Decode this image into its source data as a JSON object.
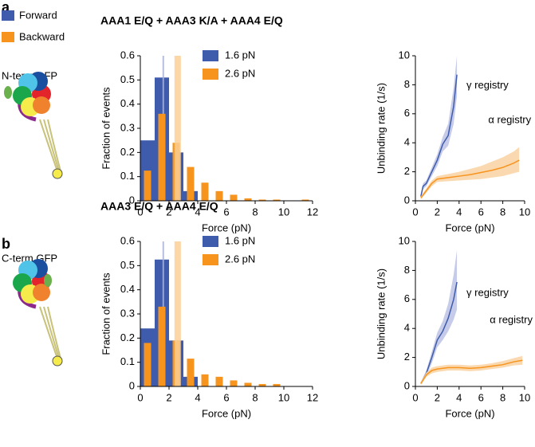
{
  "legend": {
    "forward": {
      "label": "Forward",
      "color": "#3f5bac"
    },
    "backward": {
      "label": "Backward",
      "color": "#f7941d"
    }
  },
  "panels": [
    {
      "label": "a",
      "gfp": "N-term GFP"
    },
    {
      "label": "b",
      "gfp": "C-term GFP"
    }
  ],
  "chart_data": [
    {
      "type": "histogram",
      "title": "AAA1 E/Q + AAA3 K/A + AAA4 E/Q",
      "xlabel": "Force (pN)",
      "ylabel": "Fraction of events",
      "bins": [
        0,
        1,
        2,
        3,
        4,
        5,
        6,
        7,
        8,
        9,
        10,
        11,
        12
      ],
      "series": [
        {
          "name": "1.6 pN",
          "color": "#3f5bac",
          "mean": 1.6,
          "mean_color": "#aab3dd",
          "values": [
            0.25,
            0.51,
            0.2,
            0.04,
            null,
            null,
            null,
            null,
            null,
            null,
            null,
            null
          ]
        },
        {
          "name": "2.6 pN",
          "color": "#f7941d",
          "mean": 2.6,
          "mean_color": "#fbcf94",
          "values": [
            0.125,
            0.36,
            0.24,
            0.14,
            0.075,
            0.04,
            0.025,
            0.01,
            0.005,
            0.005,
            null,
            0.005
          ]
        }
      ],
      "xlim": [
        0,
        12
      ],
      "xticks": [
        0,
        2,
        4,
        6,
        8,
        10,
        12
      ],
      "ylim": [
        0,
        0.6
      ],
      "yticks": [
        0,
        0.1,
        0.2,
        0.3,
        0.4,
        0.5,
        0.6
      ]
    },
    {
      "type": "line",
      "xlabel": "Force (pN)",
      "ylabel": "Unbinding rate (1/s)",
      "series": [
        {
          "name": "γ registry",
          "color": "#3f5bac",
          "band_color": "#c5cbe8",
          "x": [
            0.5,
            0.7,
            1,
            1.5,
            2,
            2.5,
            3,
            3.5,
            3.8
          ],
          "values": [
            0.3,
            1.0,
            1.2,
            2.0,
            2.8,
            3.9,
            4.5,
            6.5,
            8.7
          ],
          "lower": [
            0.2,
            0.8,
            1.0,
            1.7,
            2.4,
            3.4,
            3.8,
            5.3,
            7.2
          ],
          "upper": [
            0.4,
            1.2,
            1.4,
            2.3,
            3.2,
            4.4,
            5.3,
            7.8,
            10
          ]
        },
        {
          "name": "α registry",
          "color": "#f7941d",
          "band_color": "#fbd9b0",
          "x": [
            0.5,
            1,
            1.5,
            2,
            3,
            4,
            5,
            6,
            7,
            8,
            9,
            9.5
          ],
          "values": [
            0.2,
            0.7,
            1.2,
            1.5,
            1.6,
            1.7,
            1.8,
            1.95,
            2.1,
            2.3,
            2.6,
            2.8
          ],
          "lower": [
            0.1,
            0.55,
            1.0,
            1.3,
            1.35,
            1.4,
            1.45,
            1.5,
            1.6,
            1.7,
            1.9,
            2.0
          ],
          "upper": [
            0.3,
            0.85,
            1.4,
            1.7,
            1.85,
            2.0,
            2.2,
            2.4,
            2.7,
            3.0,
            3.4,
            3.7
          ]
        }
      ],
      "xlim": [
        0,
        10
      ],
      "xticks": [
        0,
        2,
        4,
        6,
        8,
        10
      ],
      "ylim": [
        0,
        10
      ],
      "yticks": [
        0,
        2,
        4,
        6,
        8,
        10
      ]
    },
    {
      "type": "histogram",
      "title": "AAA3 E/Q + AAA4 E/Q",
      "xlabel": "Force (pN)",
      "ylabel": "Fraction of events",
      "bins": [
        0,
        1,
        2,
        3,
        4,
        5,
        6,
        7,
        8,
        9,
        10,
        11,
        12
      ],
      "series": [
        {
          "name": "1.6 pN",
          "color": "#3f5bac",
          "mean": 1.6,
          "mean_color": "#aab3dd",
          "values": [
            0.24,
            0.525,
            0.19,
            0.04,
            null,
            null,
            null,
            null,
            null,
            null,
            null,
            null
          ]
        },
        {
          "name": "2.6 pN",
          "color": "#f7941d",
          "mean": 2.6,
          "mean_color": "#fbcf94",
          "values": [
            0.18,
            0.33,
            0.19,
            0.115,
            0.05,
            0.04,
            0.025,
            0.015,
            0.01,
            0.01,
            null,
            null
          ]
        }
      ],
      "xlim": [
        0,
        12
      ],
      "xticks": [
        0,
        2,
        4,
        6,
        8,
        10,
        12
      ],
      "ylim": [
        0,
        0.6
      ],
      "yticks": [
        0,
        0.1,
        0.2,
        0.3,
        0.4,
        0.5,
        0.6
      ]
    },
    {
      "type": "line",
      "xlabel": "Force (pN)",
      "ylabel": "Unbinding rate (1/s)",
      "series": [
        {
          "name": "γ registry",
          "color": "#3f5bac",
          "band_color": "#c5cbe8",
          "x": [
            0.5,
            1,
            1.5,
            2,
            2.5,
            3,
            3.5,
            3.8
          ],
          "values": [
            0.2,
            0.9,
            2,
            3.2,
            3.8,
            4.7,
            6,
            7.2
          ],
          "lower": [
            0.1,
            0.7,
            1.6,
            2.7,
            3.2,
            3.8,
            4.6,
            5.3
          ],
          "upper": [
            0.3,
            1.1,
            2.4,
            3.7,
            4.5,
            5.7,
            7.7,
            9.4
          ]
        },
        {
          "name": "α registry",
          "color": "#f7941d",
          "band_color": "#fbd9b0",
          "x": [
            0.5,
            1,
            1.5,
            2,
            3,
            4,
            5,
            6,
            7,
            8,
            9,
            9.8
          ],
          "values": [
            0.2,
            0.8,
            1.1,
            1.2,
            1.3,
            1.3,
            1.25,
            1.3,
            1.4,
            1.5,
            1.7,
            1.8
          ],
          "lower": [
            0.1,
            0.65,
            0.9,
            1.0,
            1.1,
            1.1,
            1.05,
            1.1,
            1.2,
            1.3,
            1.45,
            1.5
          ],
          "upper": [
            0.3,
            0.95,
            1.3,
            1.4,
            1.5,
            1.5,
            1.45,
            1.5,
            1.6,
            1.75,
            1.95,
            2.1
          ]
        }
      ],
      "xlim": [
        0,
        10
      ],
      "xticks": [
        0,
        2,
        4,
        6,
        8,
        10
      ],
      "ylim": [
        0,
        10
      ],
      "yticks": [
        0,
        2,
        4,
        6,
        8,
        10
      ]
    }
  ]
}
